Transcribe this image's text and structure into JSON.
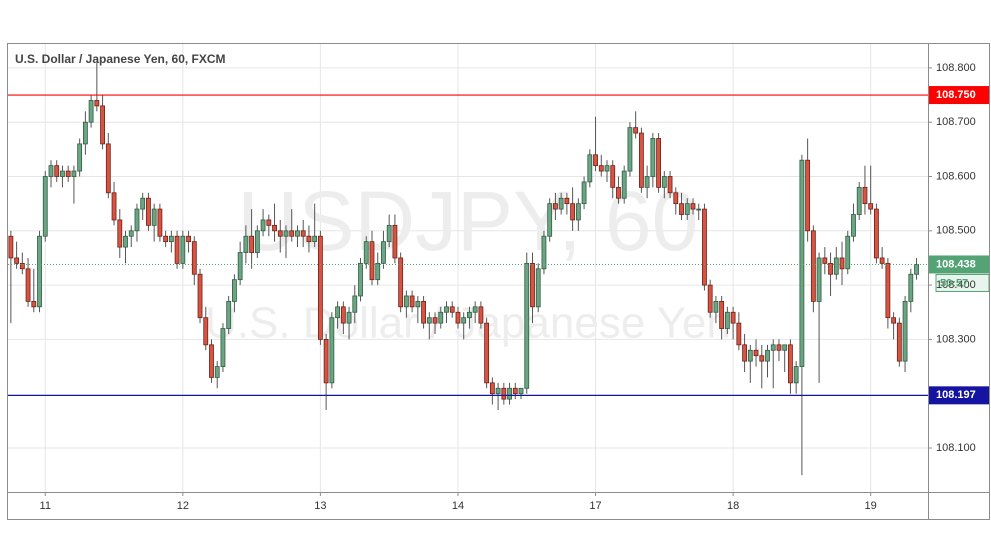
{
  "chart_data": {
    "type": "candlestick",
    "title": "U.S. Dollar / Japanese Yen, 60, FXCM",
    "watermark_symbol": "USDJPY, 60",
    "watermark_name": "U.S. Dollar / Japanese Yen",
    "up_color": "#6ba583",
    "down_color": "#d75442",
    "grid": true,
    "grid_color": "#e6e6e6",
    "xlim": [
      -0.5,
      160
    ],
    "xticks": [
      {
        "value": 6,
        "label": "11"
      },
      {
        "value": 30,
        "label": "12"
      },
      {
        "value": 54,
        "label": "13"
      },
      {
        "value": 78,
        "label": "14"
      },
      {
        "value": 102,
        "label": "17"
      },
      {
        "value": 126,
        "label": "18"
      },
      {
        "value": 150,
        "label": "19"
      }
    ],
    "ylim": [
      108.019,
      108.844
    ],
    "yticks": [
      {
        "value": 108.1,
        "label": "108.100"
      },
      {
        "value": 108.3,
        "label": "108.300"
      },
      {
        "value": 108.4,
        "label": "108.400"
      },
      {
        "value": 108.5,
        "label": "108.500"
      },
      {
        "value": 108.6,
        "label": "108.600"
      },
      {
        "value": 108.7,
        "label": "108.700"
      },
      {
        "value": 108.8,
        "label": "108.800"
      }
    ],
    "levels": [
      {
        "value": 108.75,
        "label": "108.750",
        "color": "#ff0000"
      },
      {
        "value": 108.197,
        "label": "108.197",
        "color": "#1414a0"
      }
    ],
    "last_price": 108.438,
    "last_color": "#53a374",
    "countdown": "50:57",
    "ohlc": [
      [
        108.49,
        108.5,
        108.33,
        108.45
      ],
      [
        108.45,
        108.48,
        108.43,
        108.44
      ],
      [
        108.44,
        108.46,
        108.42,
        108.43
      ],
      [
        108.43,
        108.45,
        108.36,
        108.37
      ],
      [
        108.37,
        108.43,
        108.35,
        108.36
      ],
      [
        108.36,
        108.5,
        108.35,
        108.49
      ],
      [
        108.49,
        108.61,
        108.48,
        108.6
      ],
      [
        108.6,
        108.63,
        108.58,
        108.62
      ],
      [
        108.62,
        108.63,
        108.59,
        108.6
      ],
      [
        108.6,
        108.62,
        108.58,
        108.61
      ],
      [
        108.61,
        108.62,
        108.59,
        108.6
      ],
      [
        108.6,
        108.62,
        108.55,
        108.61
      ],
      [
        108.61,
        108.67,
        108.6,
        108.66
      ],
      [
        108.66,
        108.72,
        108.64,
        108.7
      ],
      [
        108.7,
        108.75,
        108.69,
        108.74
      ],
      [
        108.74,
        108.81,
        108.72,
        108.73
      ],
      [
        108.73,
        108.75,
        108.65,
        108.66
      ],
      [
        108.66,
        108.68,
        108.56,
        108.57
      ],
      [
        108.57,
        108.59,
        108.51,
        108.52
      ],
      [
        108.52,
        108.54,
        108.45,
        108.47
      ],
      [
        108.47,
        108.5,
        108.44,
        108.49
      ],
      [
        108.49,
        108.51,
        108.47,
        108.5
      ],
      [
        108.5,
        108.55,
        108.48,
        108.54
      ],
      [
        108.54,
        108.57,
        108.52,
        108.56
      ],
      [
        108.56,
        108.57,
        108.5,
        108.51
      ],
      [
        108.51,
        108.55,
        108.48,
        108.54
      ],
      [
        108.54,
        108.55,
        108.48,
        108.49
      ],
      [
        108.49,
        108.5,
        108.47,
        108.48
      ],
      [
        108.48,
        108.5,
        108.46,
        108.49
      ],
      [
        108.49,
        108.5,
        108.43,
        108.44
      ],
      [
        108.44,
        108.5,
        108.43,
        108.49
      ],
      [
        108.49,
        108.5,
        108.46,
        108.48
      ],
      [
        108.48,
        108.49,
        108.4,
        108.42
      ],
      [
        108.42,
        108.43,
        108.33,
        108.34
      ],
      [
        108.34,
        108.36,
        108.28,
        108.29
      ],
      [
        108.29,
        108.3,
        108.22,
        108.23
      ],
      [
        108.23,
        108.26,
        108.21,
        108.25
      ],
      [
        108.25,
        108.33,
        108.24,
        108.32
      ],
      [
        108.32,
        108.38,
        108.31,
        108.37
      ],
      [
        108.37,
        108.42,
        108.35,
        108.41
      ],
      [
        108.41,
        108.48,
        108.4,
        108.46
      ],
      [
        108.46,
        108.51,
        108.44,
        108.49
      ],
      [
        108.49,
        108.54,
        108.43,
        108.46
      ],
      [
        108.46,
        108.51,
        108.45,
        108.5
      ],
      [
        108.5,
        108.54,
        108.49,
        108.52
      ],
      [
        108.52,
        108.53,
        108.49,
        108.51
      ],
      [
        108.51,
        108.55,
        108.48,
        108.5
      ],
      [
        108.5,
        108.52,
        108.46,
        108.49
      ],
      [
        108.49,
        108.51,
        108.45,
        108.5
      ],
      [
        108.5,
        108.54,
        108.48,
        108.49
      ],
      [
        108.49,
        108.51,
        108.47,
        108.5
      ],
      [
        108.5,
        108.52,
        108.47,
        108.49
      ],
      [
        108.49,
        108.51,
        108.46,
        108.48
      ],
      [
        108.48,
        108.55,
        108.47,
        108.49
      ],
      [
        108.49,
        108.5,
        108.29,
        108.3
      ],
      [
        108.3,
        108.31,
        108.17,
        108.22
      ],
      [
        108.22,
        108.35,
        108.21,
        108.34
      ],
      [
        108.34,
        108.37,
        108.32,
        108.36
      ],
      [
        108.36,
        108.37,
        108.31,
        108.33
      ],
      [
        108.33,
        108.36,
        108.3,
        108.35
      ],
      [
        108.35,
        108.4,
        108.33,
        108.38
      ],
      [
        108.38,
        108.45,
        108.37,
        108.44
      ],
      [
        108.44,
        108.49,
        108.43,
        108.48
      ],
      [
        108.48,
        108.5,
        108.4,
        108.41
      ],
      [
        108.41,
        108.46,
        108.4,
        108.44
      ],
      [
        108.44,
        108.5,
        108.43,
        108.48
      ],
      [
        108.48,
        108.53,
        108.47,
        108.51
      ],
      [
        108.51,
        108.53,
        108.44,
        108.45
      ],
      [
        108.45,
        108.46,
        108.35,
        108.36
      ],
      [
        108.36,
        108.39,
        108.34,
        108.38
      ],
      [
        108.38,
        108.39,
        108.35,
        108.36
      ],
      [
        108.36,
        108.38,
        108.33,
        108.37
      ],
      [
        108.37,
        108.38,
        108.32,
        108.33
      ],
      [
        108.33,
        108.35,
        108.3,
        108.34
      ],
      [
        108.34,
        108.35,
        108.31,
        108.33
      ],
      [
        108.33,
        108.36,
        108.32,
        108.35
      ],
      [
        108.35,
        108.37,
        108.33,
        108.36
      ],
      [
        108.36,
        108.37,
        108.34,
        108.35
      ],
      [
        108.35,
        108.36,
        108.32,
        108.33
      ],
      [
        108.33,
        108.35,
        108.3,
        108.34
      ],
      [
        108.34,
        108.36,
        108.32,
        108.35
      ],
      [
        108.35,
        108.37,
        108.33,
        108.36
      ],
      [
        108.36,
        108.37,
        108.32,
        108.33
      ],
      [
        108.33,
        108.34,
        108.21,
        108.22
      ],
      [
        108.22,
        108.23,
        108.18,
        108.2
      ],
      [
        108.2,
        108.22,
        108.17,
        108.21
      ],
      [
        108.21,
        108.22,
        108.18,
        108.19
      ],
      [
        108.19,
        108.22,
        108.18,
        108.21
      ],
      [
        108.21,
        108.22,
        108.19,
        108.2
      ],
      [
        108.2,
        108.21,
        108.19,
        108.21
      ],
      [
        108.21,
        108.46,
        108.2,
        108.44
      ],
      [
        108.44,
        108.46,
        108.33,
        108.36
      ],
      [
        108.36,
        108.44,
        108.35,
        108.43
      ],
      [
        108.43,
        108.5,
        108.42,
        108.49
      ],
      [
        108.49,
        108.56,
        108.48,
        108.55
      ],
      [
        108.55,
        108.57,
        108.52,
        108.54
      ],
      [
        108.54,
        108.57,
        108.53,
        108.56
      ],
      [
        108.56,
        108.57,
        108.53,
        108.55
      ],
      [
        108.55,
        108.58,
        108.5,
        108.52
      ],
      [
        108.52,
        108.56,
        108.5,
        108.55
      ],
      [
        108.55,
        108.6,
        108.54,
        108.59
      ],
      [
        108.59,
        108.65,
        108.58,
        108.64
      ],
      [
        108.64,
        108.71,
        108.61,
        108.62
      ],
      [
        108.62,
        108.64,
        108.6,
        108.61
      ],
      [
        108.61,
        108.63,
        108.59,
        108.62
      ],
      [
        108.62,
        108.63,
        108.56,
        108.58
      ],
      [
        108.58,
        108.6,
        108.55,
        108.56
      ],
      [
        108.56,
        108.62,
        108.55,
        108.61
      ],
      [
        108.61,
        108.7,
        108.6,
        108.69
      ],
      [
        108.69,
        108.72,
        108.67,
        108.68
      ],
      [
        108.68,
        108.69,
        108.57,
        108.58
      ],
      [
        108.58,
        108.62,
        108.56,
        108.6
      ],
      [
        108.6,
        108.68,
        108.58,
        108.67
      ],
      [
        108.67,
        108.68,
        108.57,
        108.58
      ],
      [
        108.58,
        108.61,
        108.56,
        108.6
      ],
      [
        108.6,
        108.61,
        108.56,
        108.57
      ],
      [
        108.57,
        108.58,
        108.53,
        108.55
      ],
      [
        108.55,
        108.57,
        108.52,
        108.53
      ],
      [
        108.53,
        108.56,
        108.52,
        108.55
      ],
      [
        108.55,
        108.56,
        108.53,
        108.54
      ],
      [
        108.54,
        108.55,
        108.52,
        108.54
      ],
      [
        108.54,
        108.55,
        108.39,
        108.4
      ],
      [
        108.4,
        108.41,
        108.34,
        108.35
      ],
      [
        108.35,
        108.38,
        108.33,
        108.37
      ],
      [
        108.37,
        108.38,
        108.3,
        108.32
      ],
      [
        108.32,
        108.36,
        108.31,
        108.35
      ],
      [
        108.35,
        108.36,
        108.3,
        108.33
      ],
      [
        108.33,
        108.35,
        108.28,
        108.29
      ],
      [
        108.29,
        108.31,
        108.24,
        108.26
      ],
      [
        108.26,
        108.29,
        108.22,
        108.28
      ],
      [
        108.28,
        108.3,
        108.25,
        108.27
      ],
      [
        108.27,
        108.29,
        108.21,
        108.26
      ],
      [
        108.26,
        108.29,
        108.23,
        108.28
      ],
      [
        108.28,
        108.3,
        108.21,
        108.29
      ],
      [
        108.29,
        108.3,
        108.26,
        108.28
      ],
      [
        108.28,
        108.29,
        108.24,
        108.29
      ],
      [
        108.29,
        108.3,
        108.2,
        108.22
      ],
      [
        108.22,
        108.26,
        108.2,
        108.25
      ],
      [
        108.25,
        108.64,
        108.05,
        108.63
      ],
      [
        108.63,
        108.67,
        108.48,
        108.5
      ],
      [
        108.5,
        108.51,
        108.35,
        108.37
      ],
      [
        108.37,
        108.46,
        108.22,
        108.45
      ],
      [
        108.45,
        108.47,
        108.42,
        108.44
      ],
      [
        108.44,
        108.46,
        108.38,
        108.42
      ],
      [
        108.42,
        108.47,
        108.41,
        108.45
      ],
      [
        108.45,
        108.48,
        108.4,
        108.43
      ],
      [
        108.43,
        108.5,
        108.42,
        108.49
      ],
      [
        108.49,
        108.55,
        108.48,
        108.53
      ],
      [
        108.53,
        108.59,
        108.52,
        108.58
      ],
      [
        108.58,
        108.62,
        108.53,
        108.55
      ],
      [
        108.55,
        108.62,
        108.53,
        108.54
      ],
      [
        108.54,
        108.55,
        108.44,
        108.45
      ],
      [
        108.45,
        108.47,
        108.43,
        108.44
      ],
      [
        108.44,
        108.45,
        108.32,
        108.34
      ],
      [
        108.34,
        108.35,
        108.3,
        108.33
      ],
      [
        108.33,
        108.34,
        108.25,
        108.26
      ],
      [
        108.26,
        108.38,
        108.24,
        108.37
      ],
      [
        108.37,
        108.43,
        108.35,
        108.42
      ],
      [
        108.42,
        108.45,
        108.41,
        108.438
      ]
    ]
  }
}
